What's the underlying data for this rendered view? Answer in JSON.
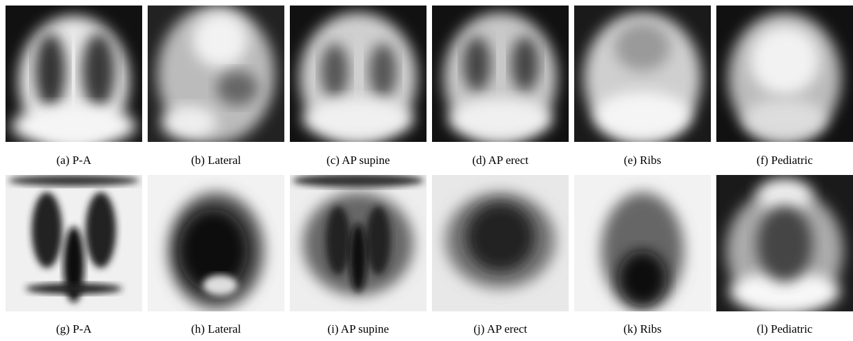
{
  "panels": [
    {
      "caption": "(a) P-A"
    },
    {
      "caption": "(b) Lateral"
    },
    {
      "caption": "(c) AP supine"
    },
    {
      "caption": "(d) AP erect"
    },
    {
      "caption": "(e) Ribs"
    },
    {
      "caption": "(f) Pediatric"
    },
    {
      "caption": "(g) P-A"
    },
    {
      "caption": "(h) Lateral"
    },
    {
      "caption": "(i) AP supine"
    },
    {
      "caption": "(j) AP erect"
    },
    {
      "caption": "(k) Ribs"
    },
    {
      "caption": "(l) Pediatric"
    }
  ]
}
